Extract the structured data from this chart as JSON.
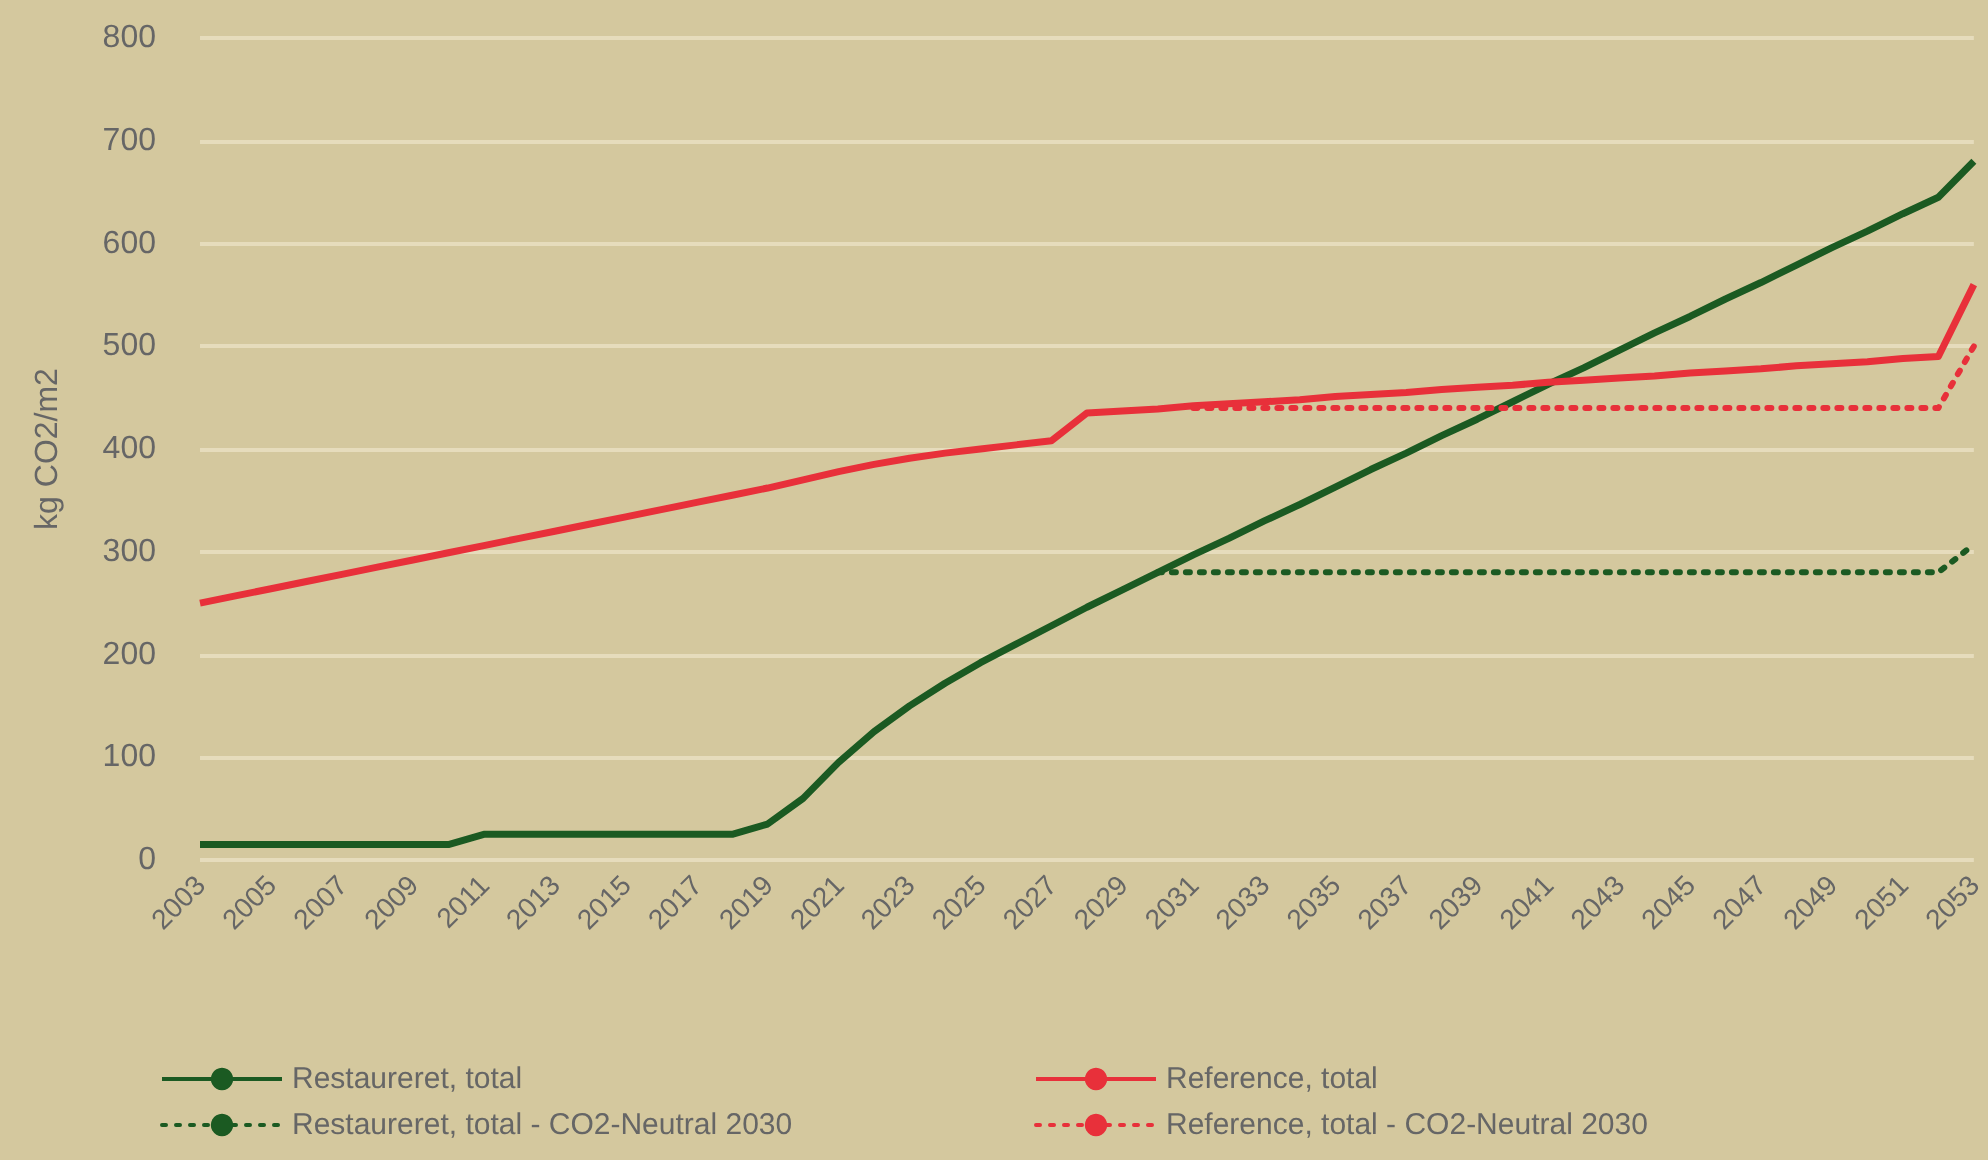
{
  "chart_data": {
    "type": "line",
    "ylabel": "kg CO2/m2",
    "categories": [
      "2003",
      null,
      "2005",
      null,
      "2007",
      null,
      "2009",
      null,
      "2011",
      null,
      "2013",
      null,
      "2015",
      null,
      "2017",
      null,
      "2019",
      null,
      "2021",
      null,
      "2023",
      null,
      "2025",
      null,
      "2027",
      null,
      "2029",
      null,
      "2031",
      null,
      "2033",
      null,
      "2035",
      null,
      "2037",
      null,
      "2039",
      null,
      "2041",
      null,
      "2043",
      null,
      "2045",
      null,
      "2047",
      null,
      "2049",
      null,
      "2051",
      null,
      "2053"
    ],
    "series": [
      {
        "name": "Restaureret, total",
        "color": "#1b5a22",
        "line_style": "solid",
        "values": [
          15,
          15,
          15,
          15,
          15,
          15,
          15,
          15,
          25,
          25,
          25,
          25,
          25,
          25,
          25,
          25,
          35,
          60,
          95,
          125,
          150,
          172,
          192,
          210,
          228,
          246,
          263,
          280,
          297,
          313,
          330,
          346,
          363,
          380,
          396,
          413,
          429,
          446,
          463,
          479,
          496,
          513,
          529,
          546,
          562,
          579,
          596,
          612,
          629,
          645,
          680
        ]
      },
      {
        "name": "Reference, total",
        "color": "#e8303a",
        "line_style": "solid",
        "values": [
          250,
          257,
          264,
          271,
          278,
          285,
          292,
          299,
          306,
          313,
          320,
          327,
          334,
          341,
          348,
          355,
          362,
          370,
          378,
          385,
          391,
          396,
          400,
          404,
          408,
          435,
          437,
          439,
          442,
          444,
          446,
          448,
          451,
          453,
          455,
          458,
          460,
          462,
          465,
          467,
          469,
          471,
          474,
          476,
          478,
          481,
          483,
          485,
          488,
          490,
          560
        ]
      },
      {
        "name": "Restaureret, total - CO2-Neutral 2030",
        "color": "#1b5a22",
        "line_style": "dotted",
        "values": [
          null,
          null,
          null,
          null,
          null,
          null,
          null,
          null,
          null,
          null,
          null,
          null,
          null,
          null,
          null,
          null,
          null,
          null,
          null,
          null,
          null,
          null,
          null,
          null,
          null,
          null,
          null,
          280,
          280,
          280,
          280,
          280,
          280,
          280,
          280,
          280,
          280,
          280,
          280,
          280,
          280,
          280,
          280,
          280,
          280,
          280,
          280,
          280,
          280,
          280,
          307
        ]
      },
      {
        "name": "Reference, total - CO2-Neutral 2030",
        "color": "#e8303a",
        "line_style": "dotted",
        "values": [
          null,
          null,
          null,
          null,
          null,
          null,
          null,
          null,
          null,
          null,
          null,
          null,
          null,
          null,
          null,
          null,
          null,
          null,
          null,
          null,
          null,
          null,
          null,
          null,
          null,
          null,
          null,
          null,
          440,
          440,
          440,
          440,
          440,
          440,
          440,
          440,
          440,
          440,
          440,
          440,
          440,
          440,
          440,
          440,
          440,
          440,
          440,
          440,
          440,
          440,
          500
        ]
      }
    ],
    "ylim": [
      0,
      800
    ],
    "yticks": [
      0,
      100,
      200,
      300,
      400,
      500,
      600,
      700,
      800
    ],
    "grid": "y",
    "legend": "bottom",
    "marker": "none"
  }
}
